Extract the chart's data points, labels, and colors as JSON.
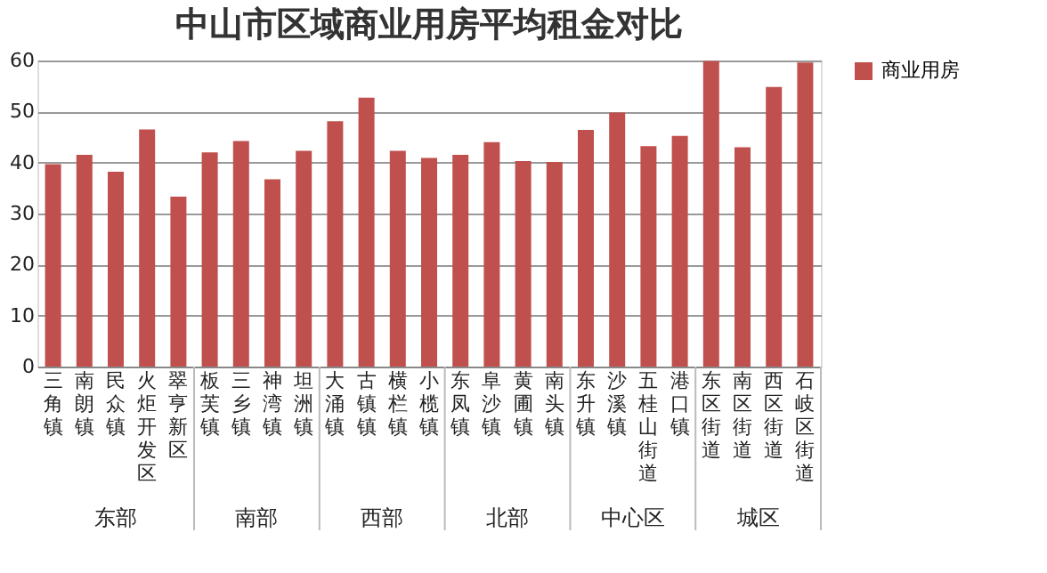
{
  "chart_data": {
    "type": "bar",
    "title": "中山市区域商业用房平均租金对比",
    "categories": [
      "三角镇",
      "南朗镇",
      "民众镇",
      "火炬开发区",
      "翠亨新区",
      "板芙镇",
      "三乡镇",
      "神湾镇",
      "坦洲镇",
      "大涌镇",
      "古镇镇",
      "横栏镇",
      "小榄镇",
      "东凤镇",
      "阜沙镇",
      "黄圃镇",
      "南头镇",
      "东升镇",
      "沙溪镇",
      "五桂山街道",
      "港口镇",
      "东区街道",
      "南区街道",
      "西区街道",
      "石岐区街道"
    ],
    "series": [
      {
        "name": "商业用房",
        "color": "#c0504d",
        "values": [
          39.7,
          41.5,
          38.2,
          46.5,
          33.3,
          42,
          44.2,
          36.7,
          42.3,
          48.1,
          52.7,
          42.3,
          40.9,
          41.5,
          44,
          40.3,
          40.1,
          46.4,
          49.8,
          43.2,
          45.2,
          59.9,
          43,
          54.8,
          59.6
        ]
      }
    ],
    "ylim": [
      0,
      60
    ],
    "yticks": [
      0,
      10,
      20,
      30,
      40,
      50,
      60
    ],
    "grid": "y",
    "legend": "right",
    "annotations": [
      "东部",
      "南部",
      "西部",
      "北部",
      "中心区",
      "城区"
    ]
  }
}
